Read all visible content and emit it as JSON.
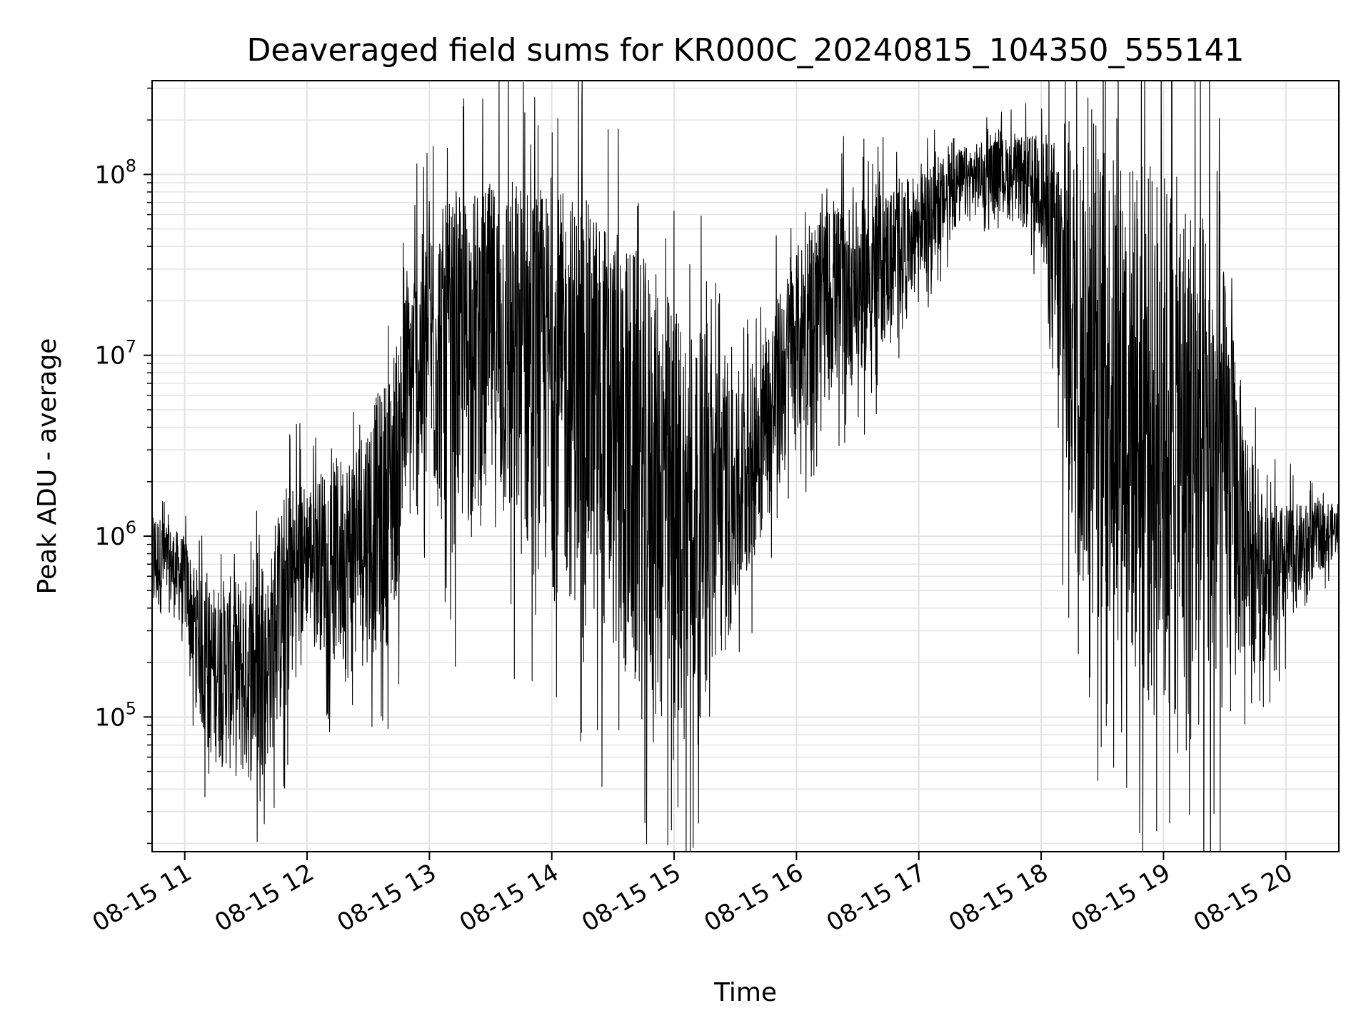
{
  "chart_data": {
    "type": "line",
    "title": "Deaveraged field sums for KR000C_20240815_104350_555141",
    "xlabel": "Time",
    "ylabel": "Peak ADU - average",
    "yscale": "log",
    "grid": true,
    "x_range": [
      "2024-08-15 10:44",
      "2024-08-15 20:26"
    ],
    "ylim": [
      18000,
      330000000
    ],
    "x_tick_labels": [
      "08-15 11",
      "08-15 12",
      "08-15 13",
      "08-15 14",
      "08-15 15",
      "08-15 16",
      "08-15 17",
      "08-15 18",
      "08-15 19",
      "08-15 20"
    ],
    "x_tick_dates": [
      "2024-08-15 11:00",
      "2024-08-15 12:00",
      "2024-08-15 13:00",
      "2024-08-15 14:00",
      "2024-08-15 15:00",
      "2024-08-15 16:00",
      "2024-08-15 17:00",
      "2024-08-15 18:00",
      "2024-08-15 19:00",
      "2024-08-15 20:00"
    ],
    "y_tick_labels": [
      {
        "base": "10",
        "exp": "5",
        "value": 100000
      },
      {
        "base": "10",
        "exp": "6",
        "value": 1000000
      },
      {
        "base": "10",
        "exp": "7",
        "value": 10000000
      },
      {
        "base": "10",
        "exp": "8",
        "value": 100000000
      }
    ],
    "line_color": "#000000",
    "series": [
      {
        "x": [
          "10:44",
          "10:50",
          "11:00",
          "11:10",
          "11:20",
          "11:30",
          "11:40",
          "11:50",
          "12:00",
          "12:10",
          "12:20",
          "12:30",
          "12:40",
          "12:50",
          "13:00",
          "13:10",
          "13:20",
          "13:30",
          "13:40",
          "13:50",
          "14:00",
          "14:10",
          "14:20",
          "14:30",
          "14:40",
          "14:50",
          "15:00",
          "15:10",
          "15:20",
          "15:30",
          "15:40",
          "15:50",
          "16:00",
          "16:10",
          "16:20",
          "16:30",
          "16:40",
          "16:50",
          "17:00",
          "17:10",
          "17:20",
          "17:30",
          "17:40",
          "17:50",
          "18:00",
          "18:10",
          "18:20",
          "18:30",
          "18:40",
          "18:50",
          "19:00",
          "19:10",
          "19:20",
          "19:30",
          "19:40",
          "19:50",
          "20:00",
          "20:10",
          "20:20",
          "20:26"
        ],
        "band_low": [
          300000,
          400000,
          300000,
          60000,
          50000,
          40000,
          50000,
          100000,
          300000,
          200000,
          150000,
          200000,
          250000,
          1000000,
          1500000,
          800000,
          1000000,
          1200000,
          800000,
          600000,
          500000,
          400000,
          300000,
          200000,
          100000,
          80000,
          70000,
          80000,
          150000,
          300000,
          800000,
          1500000,
          3000000,
          5000000,
          6000000,
          7000000,
          10000000,
          15000000,
          25000000,
          35000000,
          50000000,
          60000000,
          60000000,
          50000000,
          40000000,
          1500000,
          400000,
          300000,
          200000,
          100000,
          60000,
          50000,
          60000,
          100000,
          200000,
          200000,
          300000,
          500000,
          700000,
          800000
        ],
        "band_high": [
          1500000,
          1200000,
          1000000,
          500000,
          600000,
          600000,
          600000,
          2000000,
          2000000,
          2500000,
          3000000,
          5000000,
          8000000,
          30000000,
          60000000,
          70000000,
          80000000,
          90000000,
          100000000,
          90000000,
          80000000,
          80000000,
          70000000,
          50000000,
          40000000,
          30000000,
          20000000,
          15000000,
          10000000,
          6000000,
          10000000,
          20000000,
          40000000,
          60000000,
          70000000,
          70000000,
          80000000,
          90000000,
          100000000,
          120000000,
          140000000,
          150000000,
          160000000,
          160000000,
          170000000,
          160000000,
          150000000,
          140000000,
          130000000,
          120000000,
          110000000,
          90000000,
          60000000,
          30000000,
          5000000,
          1500000,
          1500000,
          1500000,
          1600000,
          1400000
        ]
      }
    ]
  }
}
